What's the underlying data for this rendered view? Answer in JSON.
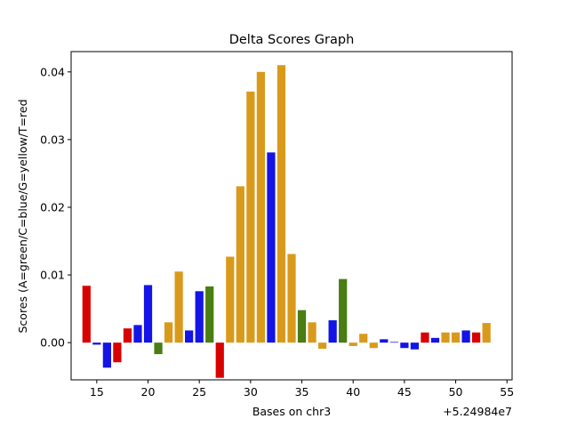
{
  "chart_data": {
    "type": "bar",
    "title": "Delta Scores Graph",
    "xlabel": "Bases on chr3",
    "ylabel": "Scores (A=green/C=blue/G=yellow/T=red",
    "offset_label": "+5.24984e7",
    "xlim": [
      12.5,
      55.5
    ],
    "ylim": [
      -0.0055,
      0.043
    ],
    "x_ticks": [
      15,
      20,
      25,
      30,
      35,
      40,
      45,
      50,
      55
    ],
    "y_ticks": [
      {
        "value": 0.0,
        "label": "0.00"
      },
      {
        "value": 0.01,
        "label": "0.01"
      },
      {
        "value": 0.02,
        "label": "0.02"
      },
      {
        "value": 0.03,
        "label": "0.03"
      },
      {
        "value": 0.04,
        "label": "0.04"
      }
    ],
    "grid": false,
    "base_colors": {
      "A": "#4a7d14",
      "C": "#1414e6",
      "G": "#d99a1c",
      "T": "#d90000"
    },
    "bars": [
      {
        "x": 14,
        "base": "T",
        "value": 0.0084
      },
      {
        "x": 15,
        "base": "C",
        "value": -0.0003
      },
      {
        "x": 16,
        "base": "C",
        "value": -0.0037
      },
      {
        "x": 17,
        "base": "T",
        "value": -0.0029
      },
      {
        "x": 18,
        "base": "T",
        "value": 0.0021
      },
      {
        "x": 19,
        "base": "C",
        "value": 0.0026
      },
      {
        "x": 20,
        "base": "C",
        "value": 0.0085
      },
      {
        "x": 21,
        "base": "A",
        "value": -0.0017
      },
      {
        "x": 22,
        "base": "G",
        "value": 0.003
      },
      {
        "x": 23,
        "base": "G",
        "value": 0.0105
      },
      {
        "x": 24,
        "base": "C",
        "value": 0.0018
      },
      {
        "x": 25,
        "base": "C",
        "value": 0.0076
      },
      {
        "x": 26,
        "base": "A",
        "value": 0.0083
      },
      {
        "x": 27,
        "base": "T",
        "value": -0.0052
      },
      {
        "x": 28,
        "base": "G",
        "value": 0.0127
      },
      {
        "x": 29,
        "base": "G",
        "value": 0.0231
      },
      {
        "x": 30,
        "base": "G",
        "value": 0.0371
      },
      {
        "x": 31,
        "base": "G",
        "value": 0.04
      },
      {
        "x": 32,
        "base": "C",
        "value": 0.0281
      },
      {
        "x": 33,
        "base": "G",
        "value": 0.041
      },
      {
        "x": 34,
        "base": "G",
        "value": 0.0131
      },
      {
        "x": 35,
        "base": "A",
        "value": 0.0048
      },
      {
        "x": 36,
        "base": "G",
        "value": 0.003
      },
      {
        "x": 37,
        "base": "G",
        "value": -0.0009
      },
      {
        "x": 38,
        "base": "C",
        "value": 0.0033
      },
      {
        "x": 39,
        "base": "A",
        "value": 0.0094
      },
      {
        "x": 40,
        "base": "G",
        "value": -0.0005
      },
      {
        "x": 41,
        "base": "G",
        "value": 0.0013
      },
      {
        "x": 42,
        "base": "G",
        "value": -0.0008
      },
      {
        "x": 43,
        "base": "C",
        "value": 0.0005
      },
      {
        "x": 44,
        "base": "C",
        "value": 0.0001
      },
      {
        "x": 45,
        "base": "C",
        "value": -0.0008
      },
      {
        "x": 46,
        "base": "C",
        "value": -0.001
      },
      {
        "x": 47,
        "base": "T",
        "value": 0.0015
      },
      {
        "x": 48,
        "base": "C",
        "value": 0.0007
      },
      {
        "x": 49,
        "base": "G",
        "value": 0.0015
      },
      {
        "x": 50,
        "base": "G",
        "value": 0.0015
      },
      {
        "x": 51,
        "base": "C",
        "value": 0.0018
      },
      {
        "x": 52,
        "base": "T",
        "value": 0.0015
      },
      {
        "x": 53,
        "base": "G",
        "value": 0.0029
      }
    ]
  }
}
